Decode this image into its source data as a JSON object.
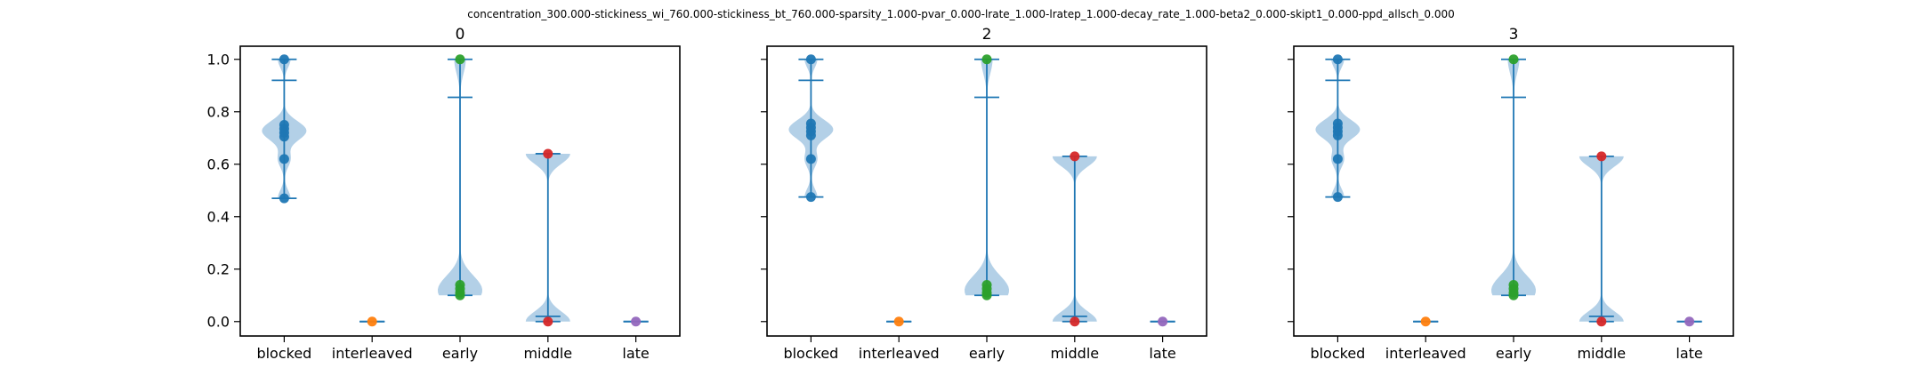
{
  "figure": {
    "suptitle": "concentration_300.000-stickiness_wi_760.000-stickiness_bt_760.000-sparsity_1.000-pvar_0.000-lrate_1.000-lratep_1.000-decay_rate_1.000-beta2_0.000-skipt1_0.000-ppd_allsch_0.000",
    "violin_color": "#a6c8e3",
    "line_color": "#1f77b4"
  },
  "chart_data": [
    {
      "type": "violin",
      "title": "0",
      "categories": [
        "blocked",
        "interleaved",
        "early",
        "middle",
        "late"
      ],
      "ylim": [
        -0.055,
        1.05
      ],
      "yticks": [
        0.0,
        0.2,
        0.4,
        0.6,
        0.8,
        1.0
      ],
      "ytick_labels": [
        "0.0",
        "0.2",
        "0.4",
        "0.6",
        "0.8",
        "1.0"
      ],
      "series": [
        {
          "category": "blocked",
          "color": "#1f77b4",
          "min": 0.47,
          "max": 1.0,
          "mean": 0.92,
          "points": [
            1.0,
            0.75,
            0.735,
            0.72,
            0.705,
            0.62,
            0.47
          ]
        },
        {
          "category": "interleaved",
          "color": "#ff7f0e",
          "min": 0.0,
          "max": 0.0,
          "mean": 0.0,
          "points": [
            0.0
          ]
        },
        {
          "category": "early",
          "color": "#2ca02c",
          "min": 0.1,
          "max": 1.0,
          "mean": 0.855,
          "points": [
            1.0,
            0.14,
            0.125,
            0.11,
            0.1
          ]
        },
        {
          "category": "middle",
          "color": "#d62728",
          "min": 0.0,
          "max": 0.64,
          "mean": 0.02,
          "points": [
            0.64,
            0.0
          ]
        },
        {
          "category": "late",
          "color": "#9467bd",
          "min": 0.0,
          "max": 0.0,
          "mean": 0.0,
          "points": [
            0.0
          ]
        }
      ]
    },
    {
      "type": "violin",
      "title": "2",
      "categories": [
        "blocked",
        "interleaved",
        "early",
        "middle",
        "late"
      ],
      "ylim": [
        -0.055,
        1.05
      ],
      "yticks": [
        0.0,
        0.2,
        0.4,
        0.6,
        0.8,
        1.0
      ],
      "ytick_labels": [
        "",
        "",
        "",
        "",
        "",
        ""
      ],
      "series": [
        {
          "category": "blocked",
          "color": "#1f77b4",
          "min": 0.475,
          "max": 1.0,
          "mean": 0.92,
          "points": [
            1.0,
            0.755,
            0.74,
            0.725,
            0.71,
            0.62,
            0.475
          ]
        },
        {
          "category": "interleaved",
          "color": "#ff7f0e",
          "min": 0.0,
          "max": 0.0,
          "mean": 0.0,
          "points": [
            0.0
          ]
        },
        {
          "category": "early",
          "color": "#2ca02c",
          "min": 0.1,
          "max": 1.0,
          "mean": 0.855,
          "points": [
            1.0,
            0.14,
            0.125,
            0.11,
            0.1
          ]
        },
        {
          "category": "middle",
          "color": "#d62728",
          "min": 0.0,
          "max": 0.63,
          "mean": 0.02,
          "points": [
            0.63,
            0.0
          ]
        },
        {
          "category": "late",
          "color": "#9467bd",
          "min": 0.0,
          "max": 0.0,
          "mean": 0.0,
          "points": [
            0.0
          ]
        }
      ]
    },
    {
      "type": "violin",
      "title": "3",
      "categories": [
        "blocked",
        "interleaved",
        "early",
        "middle",
        "late"
      ],
      "ylim": [
        -0.055,
        1.05
      ],
      "yticks": [
        0.0,
        0.2,
        0.4,
        0.6,
        0.8,
        1.0
      ],
      "ytick_labels": [
        "",
        "",
        "",
        "",
        "",
        ""
      ],
      "series": [
        {
          "category": "blocked",
          "color": "#1f77b4",
          "min": 0.475,
          "max": 1.0,
          "mean": 0.92,
          "points": [
            1.0,
            0.755,
            0.74,
            0.725,
            0.71,
            0.62,
            0.475
          ]
        },
        {
          "category": "interleaved",
          "color": "#ff7f0e",
          "min": 0.0,
          "max": 0.0,
          "mean": 0.0,
          "points": [
            0.0
          ]
        },
        {
          "category": "early",
          "color": "#2ca02c",
          "min": 0.1,
          "max": 1.0,
          "mean": 0.855,
          "points": [
            1.0,
            0.14,
            0.125,
            0.11,
            0.1
          ]
        },
        {
          "category": "middle",
          "color": "#d62728",
          "min": 0.0,
          "max": 0.63,
          "mean": 0.02,
          "points": [
            0.63,
            0.0
          ]
        },
        {
          "category": "late",
          "color": "#9467bd",
          "min": 0.0,
          "max": 0.0,
          "mean": 0.0,
          "points": [
            0.0
          ]
        }
      ]
    }
  ]
}
